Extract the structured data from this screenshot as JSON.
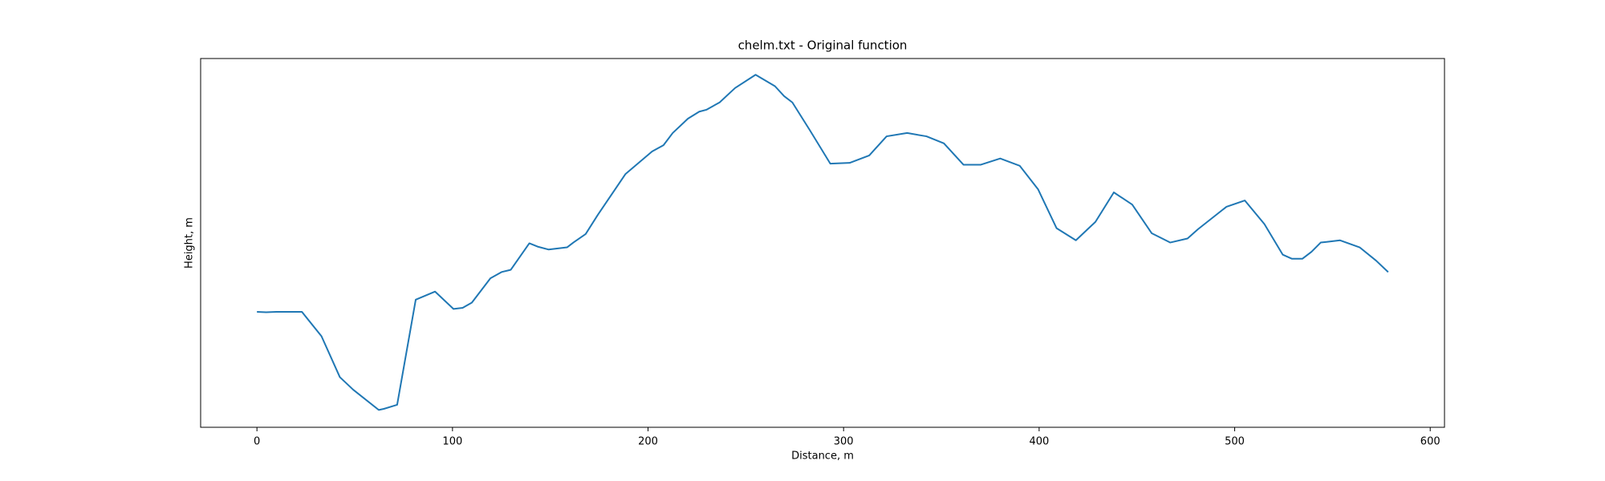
{
  "chart_data": {
    "type": "line",
    "title": "chelm.txt - Original function",
    "xlabel": "Distance, m",
    "ylabel": "Height, m",
    "series": [
      {
        "name": "chelm.txt",
        "color": "#1f77b4",
        "x": [
          0,
          4.7,
          9.9,
          23.0,
          33.0,
          42.4,
          49.2,
          62.3,
          64.9,
          71.7,
          81.2,
          91.1,
          100.5,
          105.2,
          109.9,
          119.4,
          125.1,
          129.8,
          139.3,
          143.5,
          149.2,
          158.6,
          161.8,
          168.1,
          174.3,
          188.5,
          202.1,
          207.9,
          212.6,
          220.4,
          226.2,
          229.8,
          236.6,
          244.5,
          255.0,
          264.9,
          269.6,
          273.8,
          282.7,
          293.2,
          303.1,
          313.1,
          322.0,
          332.5,
          342.4,
          351.3,
          361.3,
          370.2,
          380.1,
          390.1,
          399.5,
          408.9,
          418.8,
          428.8,
          438.2,
          447.6,
          457.6,
          461.8,
          467.0,
          475.9,
          481.2,
          495.8,
          505.2,
          515.2,
          524.6,
          529.3,
          534.6,
          539.3,
          544.0,
          549.2,
          553.9,
          563.9,
          572.3,
          578.5
        ],
        "values": [
          31.3,
          31.2,
          31.3,
          31.3,
          24.7,
          13.6,
          10.2,
          4.7,
          5.0,
          6.1,
          34.6,
          36.8,
          32.1,
          32.4,
          33.8,
          40.4,
          42.1,
          42.7,
          49.9,
          49.0,
          48.2,
          48.8,
          50.1,
          52.4,
          57.6,
          68.7,
          74.8,
          76.5,
          79.8,
          83.7,
          85.6,
          86.1,
          88.1,
          92.0,
          95.6,
          92.5,
          89.8,
          88.1,
          80.6,
          71.5,
          71.7,
          73.7,
          78.9,
          79.8,
          78.9,
          77.0,
          71.2,
          71.2,
          72.9,
          70.9,
          64.5,
          54.0,
          50.7,
          55.7,
          63.7,
          60.4,
          52.6,
          51.5,
          50.1,
          51.2,
          53.7,
          59.8,
          61.5,
          55.1,
          46.8,
          45.7,
          45.7,
          47.6,
          50.1,
          50.4,
          50.7,
          48.8,
          45.2,
          42.1
        ]
      }
    ],
    "xlim": [
      -28.8,
      607.3
    ],
    "xticks": [
      0,
      100,
      200,
      300,
      400,
      500,
      600
    ],
    "ylim": [
      0,
      100
    ],
    "grid": false
  }
}
